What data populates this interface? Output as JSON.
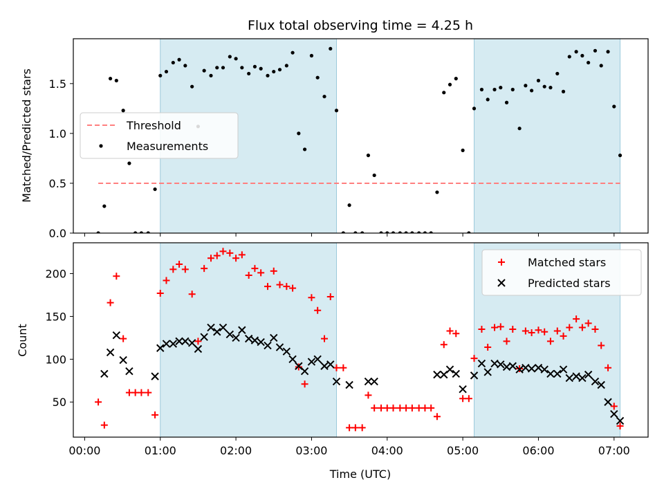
{
  "title": "Flux total observing time = 4.25 h",
  "chart_data": [
    {
      "type": "scatter",
      "panel": "top",
      "ylabel": "Matched/Predicted stars",
      "xlabel": "",
      "ylim": [
        0,
        1.95
      ],
      "yticks": [
        0.0,
        0.5,
        1.0,
        1.5
      ],
      "ytick_labels": [
        "0.0",
        "0.5",
        "1.0",
        "1.5"
      ],
      "shaded_intervals_hours": [
        [
          1.0,
          3.33
        ],
        [
          5.15,
          7.08
        ]
      ],
      "legend_position": "center-left",
      "threshold": {
        "name": "Threshold",
        "y": 0.5,
        "x_range": [
          0.18,
          7.08
        ],
        "color": "#ff7f7f",
        "style": "dashed"
      },
      "series": [
        {
          "name": "Measurements",
          "color": "#000000",
          "marker": "dot",
          "x": [
            0.18,
            0.26,
            0.34,
            0.42,
            0.51,
            0.59,
            0.67,
            0.75,
            0.84,
            0.93,
            1.0,
            1.08,
            1.17,
            1.25,
            1.33,
            1.42,
            1.5,
            1.58,
            1.67,
            1.75,
            1.83,
            1.92,
            2.0,
            2.08,
            2.17,
            2.25,
            2.33,
            2.42,
            2.5,
            2.58,
            2.67,
            2.75,
            2.83,
            2.91,
            3.0,
            3.08,
            3.17,
            3.25,
            3.33,
            3.42,
            3.5,
            3.58,
            3.67,
            3.75,
            3.83,
            3.92,
            4.0,
            4.08,
            4.17,
            4.25,
            4.33,
            4.42,
            4.5,
            4.58,
            4.66,
            4.75,
            4.83,
            4.91,
            5.0,
            5.08,
            5.15,
            5.25,
            5.33,
            5.42,
            5.5,
            5.58,
            5.66,
            5.75,
            5.83,
            5.91,
            6.0,
            6.08,
            6.16,
            6.25,
            6.33,
            6.41,
            6.5,
            6.58,
            6.66,
            6.75,
            6.83,
            6.92,
            7.0,
            7.08
          ],
          "y": [
            0.0,
            0.27,
            1.55,
            1.53,
            1.23,
            0.7,
            0.0,
            0.0,
            0.0,
            0.44,
            1.58,
            1.62,
            1.71,
            1.74,
            1.68,
            1.47,
            1.07,
            1.63,
            1.58,
            1.66,
            1.66,
            1.77,
            1.75,
            1.66,
            1.6,
            1.67,
            1.65,
            1.58,
            1.62,
            1.64,
            1.68,
            1.81,
            1.0,
            0.84,
            1.78,
            1.56,
            1.37,
            1.85,
            1.23,
            0.0,
            0.28,
            0.0,
            0.0,
            0.78,
            0.58,
            0.0,
            0.0,
            0.0,
            0.0,
            0.0,
            0.0,
            0.0,
            0.0,
            0.0,
            0.41,
            1.41,
            1.49,
            1.55,
            0.83,
            0.0,
            1.25,
            1.44,
            1.34,
            1.44,
            1.46,
            1.31,
            1.44,
            1.05,
            1.48,
            1.43,
            1.53,
            1.47,
            1.46,
            1.6,
            1.42,
            1.77,
            1.82,
            1.78,
            1.71,
            1.83,
            1.68,
            1.82,
            1.27,
            0.78
          ]
        }
      ]
    },
    {
      "type": "scatter",
      "panel": "bottom",
      "ylabel": "Count",
      "xlabel": "Time (UTC)",
      "ylim": [
        9,
        236
      ],
      "yticks": [
        50,
        100,
        150,
        200
      ],
      "ytick_labels": [
        "50",
        "100",
        "150",
        "200"
      ],
      "xlim_hours": [
        -0.15,
        7.45
      ],
      "xticks_hours": [
        0,
        1,
        2,
        3,
        4,
        5,
        6,
        7
      ],
      "xtick_labels": [
        "00:00",
        "01:00",
        "02:00",
        "03:00",
        "04:00",
        "05:00",
        "06:00",
        "07:00"
      ],
      "shaded_intervals_hours": [
        [
          1.0,
          3.33
        ],
        [
          5.15,
          7.08
        ]
      ],
      "legend_position": "top-right",
      "series": [
        {
          "name": "Matched stars",
          "color": "#ff0000",
          "marker": "plus",
          "x": [
            0.18,
            0.26,
            0.34,
            0.42,
            0.51,
            0.59,
            0.67,
            0.75,
            0.84,
            0.93,
            1.0,
            1.08,
            1.17,
            1.25,
            1.33,
            1.42,
            1.5,
            1.58,
            1.67,
            1.75,
            1.83,
            1.92,
            2.0,
            2.08,
            2.17,
            2.25,
            2.33,
            2.42,
            2.5,
            2.58,
            2.67,
            2.75,
            2.83,
            2.91,
            3.0,
            3.08,
            3.17,
            3.25,
            3.33,
            3.42,
            3.5,
            3.58,
            3.67,
            3.75,
            3.83,
            3.92,
            4.0,
            4.08,
            4.17,
            4.25,
            4.33,
            4.42,
            4.5,
            4.58,
            4.66,
            4.75,
            4.83,
            4.91,
            5.0,
            5.08,
            5.15,
            5.25,
            5.33,
            5.42,
            5.5,
            5.58,
            5.66,
            5.75,
            5.83,
            5.91,
            6.0,
            6.08,
            6.16,
            6.25,
            6.33,
            6.41,
            6.5,
            6.58,
            6.66,
            6.75,
            6.83,
            6.92,
            7.0,
            7.08
          ],
          "y": [
            50,
            23,
            166,
            197,
            124,
            61,
            61,
            61,
            61,
            35,
            177,
            192,
            205,
            211,
            205,
            176,
            121,
            206,
            218,
            221,
            226,
            224,
            218,
            222,
            198,
            206,
            201,
            185,
            203,
            187,
            185,
            183,
            91,
            71,
            172,
            157,
            124,
            173,
            90,
            90,
            20,
            20,
            20,
            58,
            43,
            43,
            43,
            43,
            43,
            43,
            43,
            43,
            43,
            43,
            33,
            117,
            133,
            130,
            54,
            54,
            101,
            135,
            114,
            137,
            138,
            121,
            135,
            89,
            133,
            131,
            134,
            132,
            121,
            133,
            127,
            137,
            147,
            137,
            142,
            135,
            116,
            90,
            45,
            22
          ]
        },
        {
          "name": "Predicted stars",
          "color": "#000000",
          "marker": "x",
          "x": [
            0.26,
            0.34,
            0.42,
            0.51,
            0.59,
            0.93,
            1.0,
            1.08,
            1.17,
            1.25,
            1.33,
            1.42,
            1.5,
            1.58,
            1.67,
            1.75,
            1.83,
            1.92,
            2.0,
            2.08,
            2.17,
            2.25,
            2.33,
            2.42,
            2.5,
            2.58,
            2.67,
            2.75,
            2.83,
            2.91,
            3.0,
            3.08,
            3.17,
            3.25,
            3.33,
            3.5,
            3.75,
            3.83,
            4.66,
            4.75,
            4.83,
            4.91,
            5.0,
            5.15,
            5.25,
            5.33,
            5.42,
            5.5,
            5.58,
            5.66,
            5.75,
            5.83,
            5.91,
            6.0,
            6.08,
            6.16,
            6.25,
            6.33,
            6.41,
            6.5,
            6.58,
            6.66,
            6.75,
            6.83,
            6.92,
            7.0,
            7.08
          ],
          "y": [
            83,
            108,
            128,
            99,
            86,
            80,
            113,
            118,
            118,
            121,
            121,
            119,
            112,
            126,
            137,
            132,
            137,
            129,
            125,
            134,
            124,
            122,
            120,
            116,
            125,
            114,
            109,
            100,
            92,
            86,
            97,
            100,
            92,
            94,
            74,
            70,
            74,
            74,
            82,
            82,
            88,
            83,
            65,
            81,
            95,
            85,
            95,
            94,
            91,
            92,
            88,
            90,
            89,
            90,
            88,
            83,
            83,
            88,
            78,
            80,
            78,
            82,
            74,
            70,
            50,
            36,
            28
          ]
        }
      ]
    }
  ]
}
